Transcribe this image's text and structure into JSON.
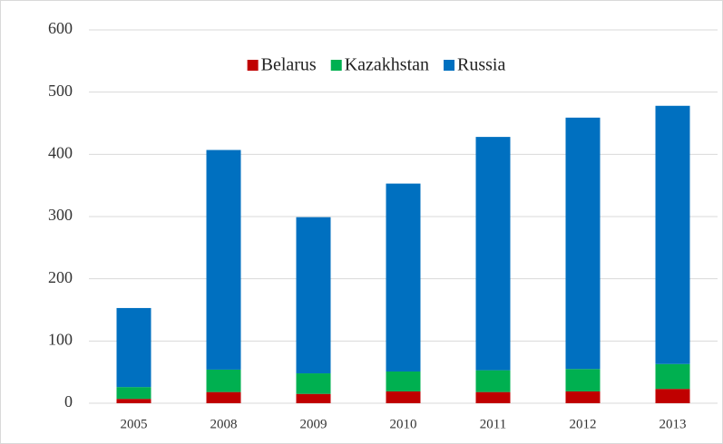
{
  "chart_data": {
    "type": "stacked_bar",
    "categories": [
      "2005",
      "2008",
      "2009",
      "2010",
      "2011",
      "2012",
      "2013"
    ],
    "series": [
      {
        "name": "Belarus",
        "color": "#c00000",
        "values": [
          7,
          18,
          15,
          19,
          18,
          19,
          23
        ]
      },
      {
        "name": "Kazakhstan",
        "color": "#00b050",
        "values": [
          19,
          36,
          33,
          32,
          35,
          36,
          40
        ]
      },
      {
        "name": "Russia",
        "color": "#0070c0",
        "values": [
          127,
          353,
          251,
          302,
          375,
          404,
          415
        ]
      }
    ],
    "ylim": [
      0,
      600
    ],
    "yticks": [
      0,
      100,
      200,
      300,
      400,
      500,
      600
    ],
    "grid": true,
    "legend": "top"
  }
}
